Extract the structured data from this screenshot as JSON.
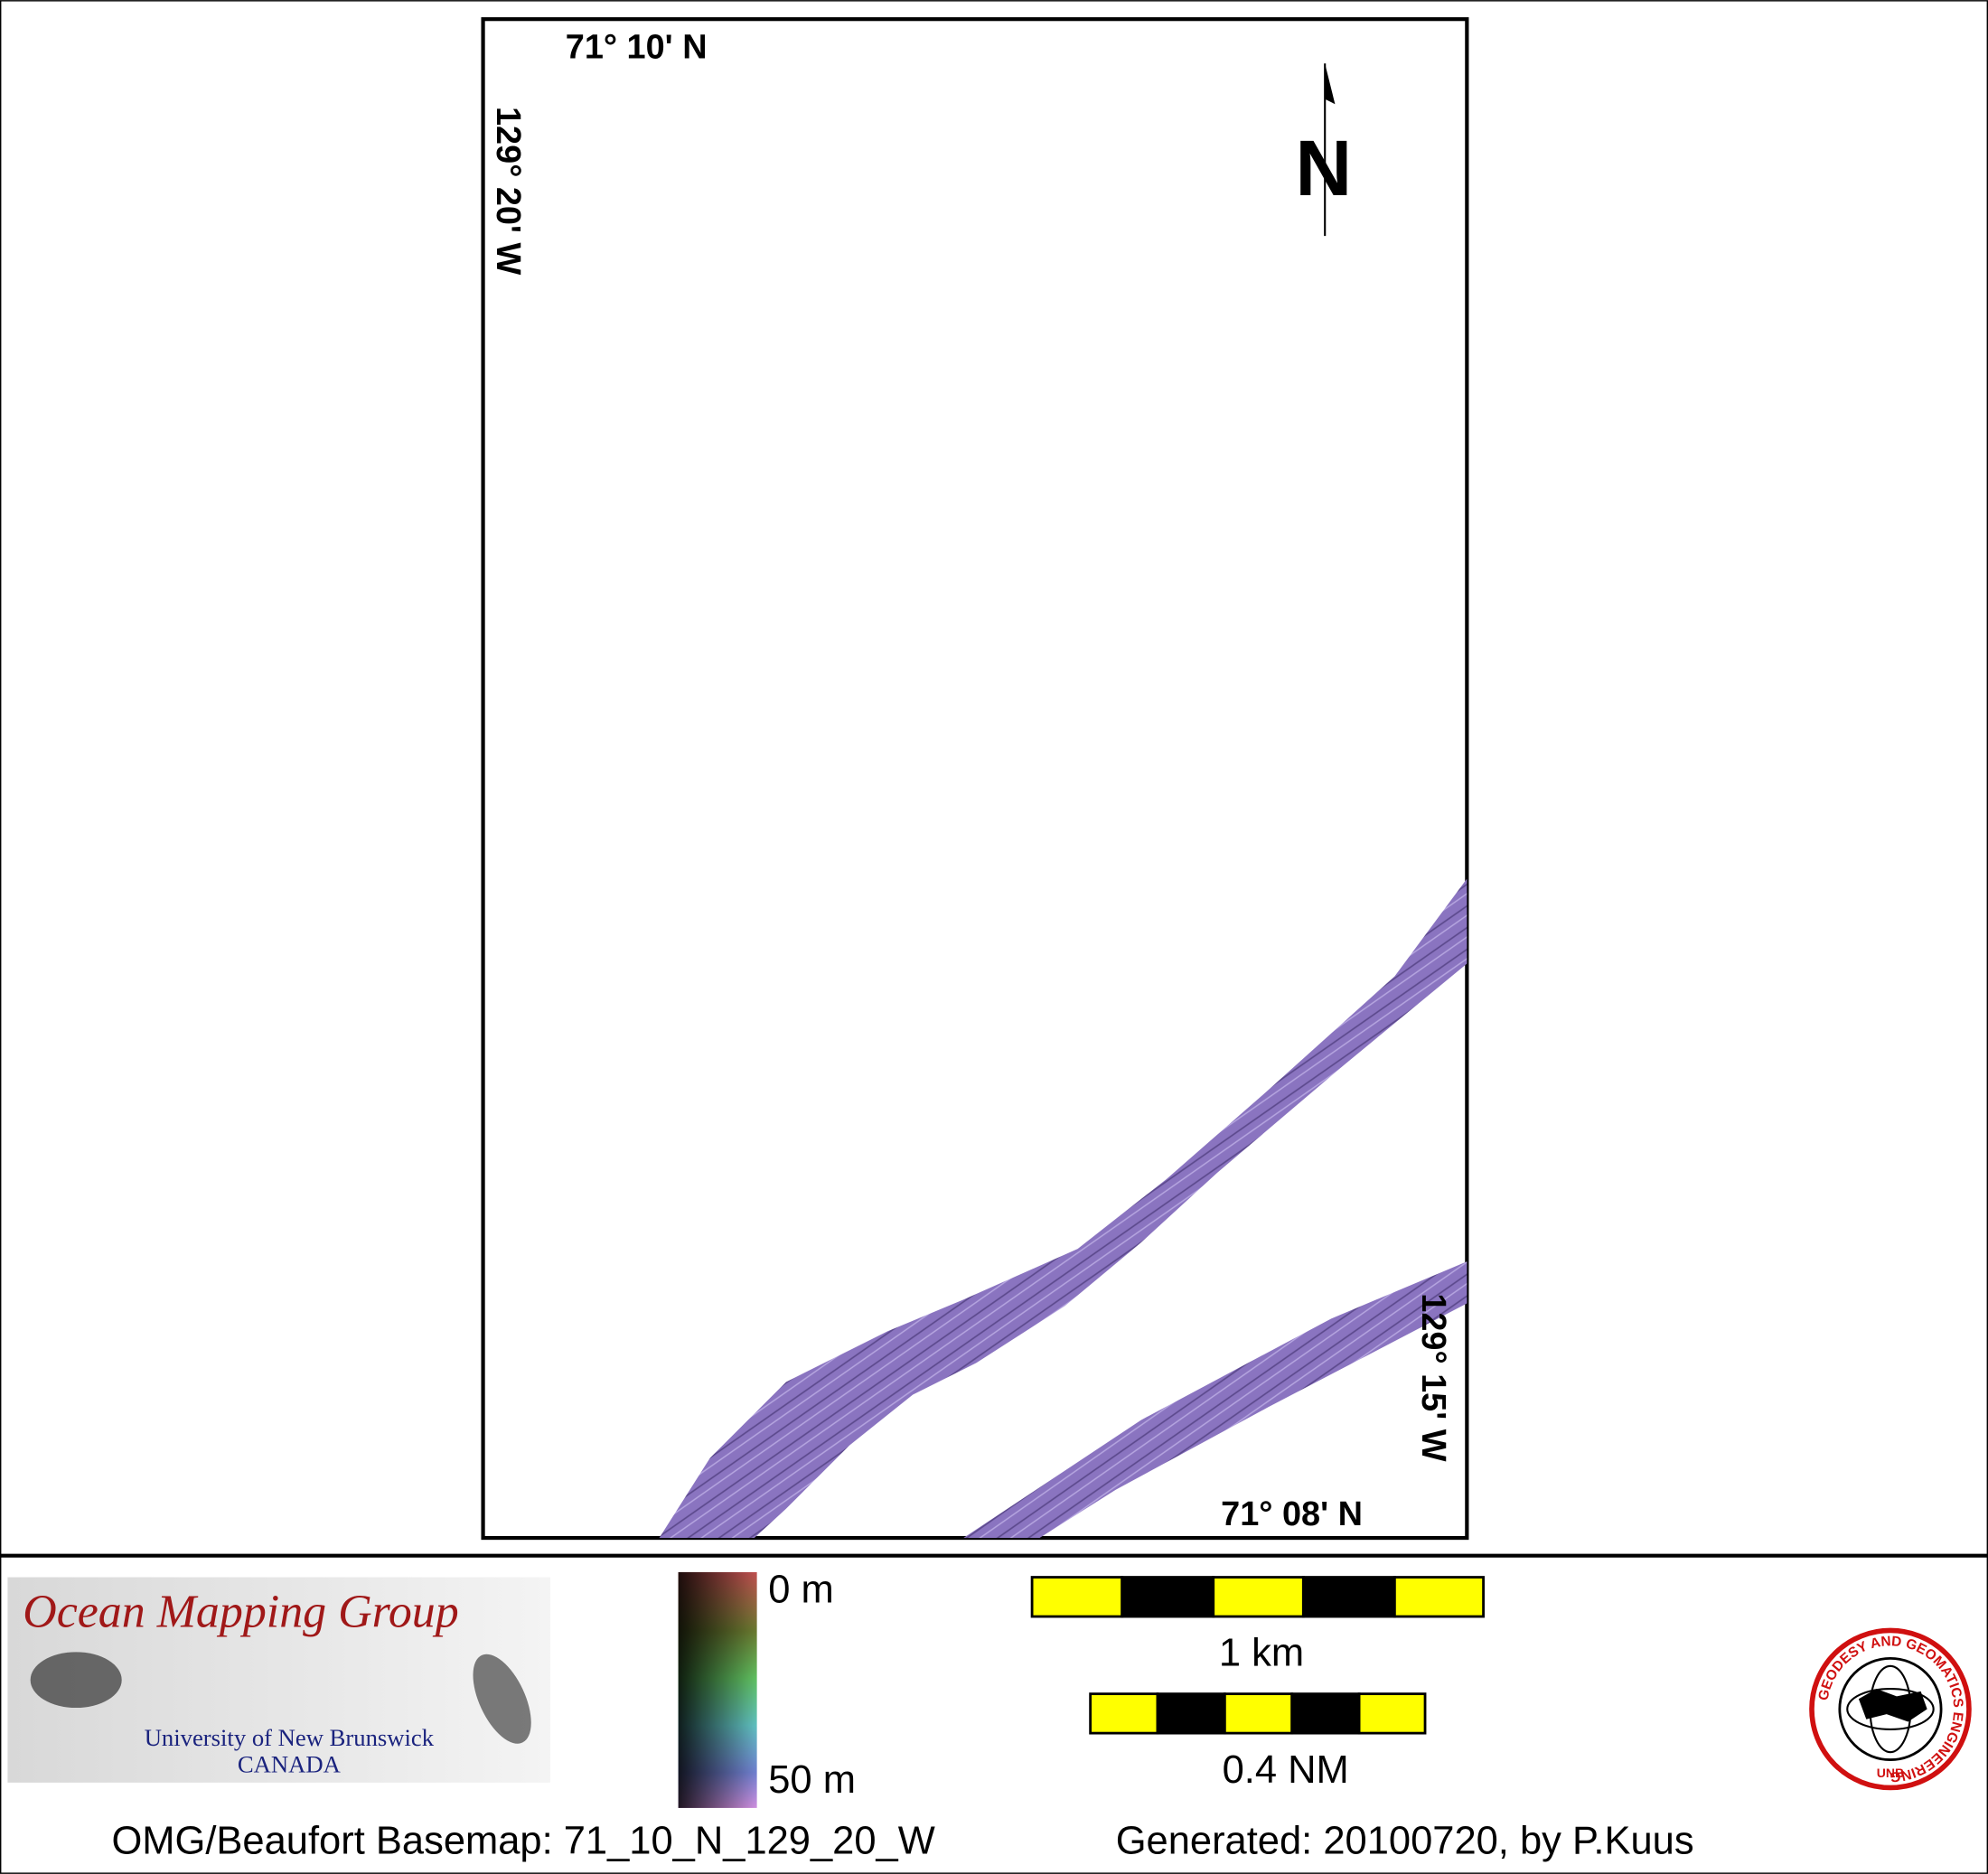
{
  "map": {
    "labels": {
      "top_lat": "71° 10' N",
      "left_lon": "129° 20' W",
      "right_lon": "129° 15' W",
      "bottom_lat": "71° 08' N",
      "north": "N"
    }
  },
  "footer": {
    "logo": {
      "title": "Ocean Mapping Group",
      "university": "University of New Brunswick",
      "country": "CANADA"
    },
    "depth_scale": {
      "top": "0 m",
      "bottom": "50 m"
    },
    "scale_bars": {
      "km": "1 km",
      "nm": "0.4 NM"
    },
    "caption": {
      "basemap": "OMG/Beaufort Basemap: 71_10_N_129_20_W",
      "generated": "Generated: 20100720, by P.Kuus"
    },
    "seal": {
      "ring": "GEODESY AND GEOMATICS ENGINEERING",
      "bottom": "UNB"
    }
  }
}
